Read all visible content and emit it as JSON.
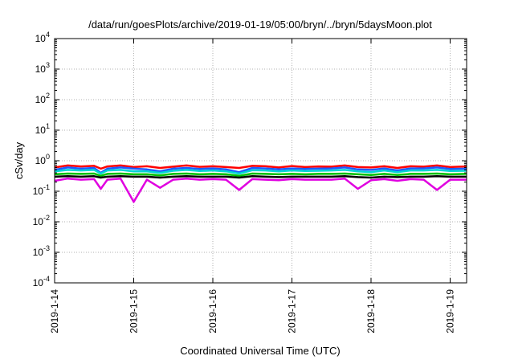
{
  "chart_data": {
    "type": "line",
    "title": "/data/run/goesPlots/archive/2019-01-19/05:00/bryn/../bryn/5daysMoon.plot",
    "xlabel": "Coordinated Universal Time (UTC)",
    "ylabel": "cSv/day",
    "yscale": "log",
    "ylim": [
      0.0001,
      10000
    ],
    "xlim": [
      "2019-01-14T00:00",
      "2019-01-19T05:00"
    ],
    "grid": true,
    "y_ticks": [
      {
        "base": "10",
        "exp": "-4"
      },
      {
        "base": "10",
        "exp": "-3"
      },
      {
        "base": "10",
        "exp": "-2"
      },
      {
        "base": "10",
        "exp": "-1"
      },
      {
        "base": "10",
        "exp": "0"
      },
      {
        "base": "10",
        "exp": "1"
      },
      {
        "base": "10",
        "exp": "2"
      },
      {
        "base": "10",
        "exp": "3"
      },
      {
        "base": "10",
        "exp": "4"
      }
    ],
    "x_ticks": [
      "2019-1-14",
      "2019-1-15",
      "2019-1-16",
      "2019-1-17",
      "2019-1-18",
      "2019-1-19"
    ],
    "x_sample_times": [
      "2019-01-14T00:00",
      "2019-01-14T04:00",
      "2019-01-14T08:00",
      "2019-01-14T12:00",
      "2019-01-14T14:00",
      "2019-01-14T16:00",
      "2019-01-14T20:00",
      "2019-01-15T00:00",
      "2019-01-15T04:00",
      "2019-01-15T08:00",
      "2019-01-15T12:00",
      "2019-01-15T16:00",
      "2019-01-15T20:00",
      "2019-01-16T00:00",
      "2019-01-16T04:00",
      "2019-01-16T08:00",
      "2019-01-16T12:00",
      "2019-01-16T16:00",
      "2019-01-16T20:00",
      "2019-01-17T00:00",
      "2019-01-17T04:00",
      "2019-01-17T08:00",
      "2019-01-17T12:00",
      "2019-01-17T16:00",
      "2019-01-17T20:00",
      "2019-01-18T00:00",
      "2019-01-18T04:00",
      "2019-01-18T08:00",
      "2019-01-18T12:00",
      "2019-01-18T16:00",
      "2019-01-18T20:00",
      "2019-01-19T00:00",
      "2019-01-19T05:00"
    ],
    "series": [
      {
        "color": "#ff0000",
        "values": [
          0.6,
          0.7,
          0.65,
          0.68,
          0.55,
          0.65,
          0.7,
          0.62,
          0.66,
          0.58,
          0.64,
          0.7,
          0.63,
          0.66,
          0.62,
          0.58,
          0.68,
          0.66,
          0.6,
          0.67,
          0.62,
          0.65,
          0.64,
          0.7,
          0.62,
          0.6,
          0.66,
          0.58,
          0.66,
          0.64,
          0.7,
          0.62,
          0.65
        ]
      },
      {
        "color": "#1e5aff",
        "values": [
          0.5,
          0.6,
          0.55,
          0.58,
          0.4,
          0.55,
          0.6,
          0.55,
          0.52,
          0.45,
          0.55,
          0.58,
          0.54,
          0.56,
          0.52,
          0.42,
          0.58,
          0.56,
          0.52,
          0.56,
          0.54,
          0.55,
          0.56,
          0.6,
          0.52,
          0.5,
          0.56,
          0.48,
          0.56,
          0.56,
          0.6,
          0.54,
          0.55
        ]
      },
      {
        "color": "#00d4d4",
        "values": [
          0.45,
          0.5,
          0.48,
          0.5,
          0.38,
          0.48,
          0.5,
          0.45,
          0.45,
          0.4,
          0.47,
          0.5,
          0.46,
          0.48,
          0.45,
          0.38,
          0.49,
          0.48,
          0.45,
          0.48,
          0.46,
          0.47,
          0.48,
          0.5,
          0.45,
          0.42,
          0.48,
          0.42,
          0.48,
          0.48,
          0.5,
          0.46,
          0.47
        ]
      },
      {
        "color": "#00c000",
        "values": [
          0.36,
          0.38,
          0.37,
          0.38,
          0.32,
          0.37,
          0.38,
          0.36,
          0.36,
          0.33,
          0.37,
          0.38,
          0.36,
          0.37,
          0.36,
          0.32,
          0.38,
          0.37,
          0.36,
          0.37,
          0.36,
          0.37,
          0.37,
          0.38,
          0.36,
          0.34,
          0.37,
          0.34,
          0.37,
          0.37,
          0.38,
          0.36,
          0.37
        ]
      },
      {
        "color": "#000000",
        "values": [
          0.3,
          0.31,
          0.3,
          0.31,
          0.28,
          0.3,
          0.31,
          0.3,
          0.3,
          0.28,
          0.3,
          0.31,
          0.3,
          0.3,
          0.3,
          0.28,
          0.31,
          0.3,
          0.29,
          0.3,
          0.3,
          0.3,
          0.3,
          0.31,
          0.29,
          0.28,
          0.3,
          0.29,
          0.3,
          0.3,
          0.31,
          0.3,
          0.3
        ]
      },
      {
        "color": "#e000e0",
        "values": [
          0.22,
          0.26,
          0.24,
          0.25,
          0.12,
          0.24,
          0.26,
          0.045,
          0.24,
          0.13,
          0.24,
          0.26,
          0.24,
          0.25,
          0.24,
          0.11,
          0.25,
          0.24,
          0.23,
          0.25,
          0.24,
          0.24,
          0.24,
          0.26,
          0.12,
          0.23,
          0.25,
          0.22,
          0.25,
          0.24,
          0.11,
          0.24,
          0.24
        ]
      }
    ]
  }
}
